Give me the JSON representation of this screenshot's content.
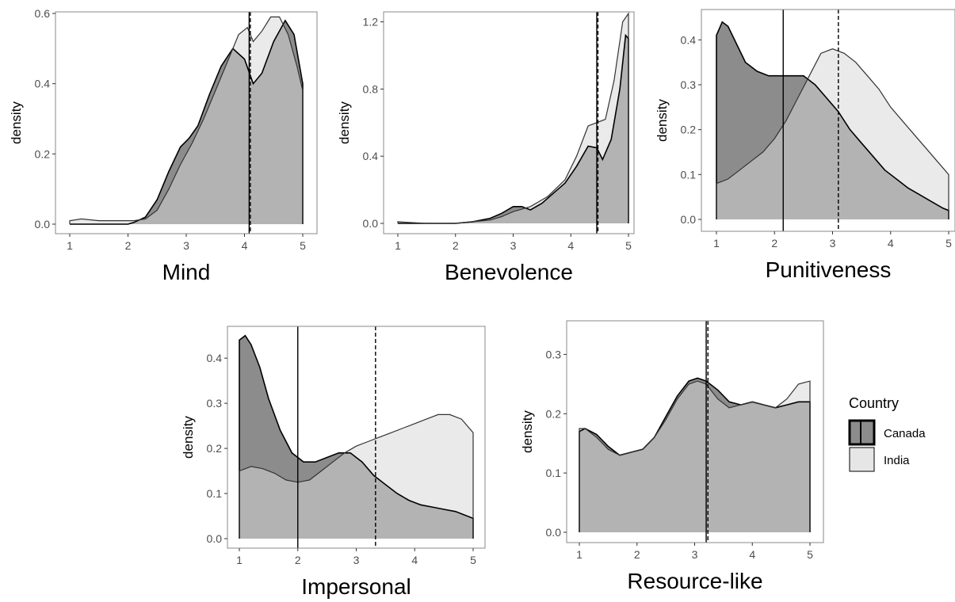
{
  "legend": {
    "title": "Country",
    "entries": [
      {
        "label": "Canada",
        "fill": "#8c8c8c"
      },
      {
        "label": "India",
        "fill": "#e6e6e6"
      }
    ]
  },
  "chart_data": [
    {
      "type": "area",
      "xlabel": "Mind",
      "ylabel": "density",
      "xlim": [
        1,
        5
      ],
      "ylim": [
        0,
        0.6
      ],
      "xticks": [
        1,
        2,
        3,
        4,
        5
      ],
      "yticks": [
        0.0,
        0.2,
        0.4,
        0.6
      ],
      "ytick_labels": [
        "0.0",
        "0.2",
        "0.4",
        "0.6"
      ],
      "series": [
        {
          "name": "Canada",
          "mean": 4.08,
          "mean_line": "solid",
          "x": [
            1.0,
            2.0,
            2.1,
            2.3,
            2.5,
            2.7,
            2.9,
            3.05,
            3.2,
            3.4,
            3.6,
            3.8,
            4.0,
            4.15,
            4.3,
            4.5,
            4.7,
            4.85,
            5.0
          ],
          "y": [
            0.0,
            0.0,
            0.005,
            0.02,
            0.07,
            0.15,
            0.22,
            0.245,
            0.28,
            0.37,
            0.45,
            0.5,
            0.47,
            0.4,
            0.43,
            0.52,
            0.58,
            0.54,
            0.4
          ]
        },
        {
          "name": "India",
          "mean": 4.1,
          "mean_line": "dashed",
          "x": [
            1.0,
            1.2,
            1.5,
            1.8,
            2.1,
            2.3,
            2.5,
            2.7,
            2.9,
            3.1,
            3.3,
            3.5,
            3.7,
            3.9,
            4.05,
            4.15,
            4.3,
            4.45,
            4.6,
            4.75,
            4.9,
            5.0
          ],
          "y": [
            0.01,
            0.015,
            0.01,
            0.01,
            0.01,
            0.015,
            0.04,
            0.1,
            0.17,
            0.23,
            0.3,
            0.38,
            0.46,
            0.54,
            0.56,
            0.52,
            0.55,
            0.59,
            0.59,
            0.54,
            0.45,
            0.38
          ]
        }
      ]
    },
    {
      "type": "area",
      "xlabel": "Benevolence",
      "ylabel": "density",
      "xlim": [
        1,
        5
      ],
      "ylim": [
        0,
        1.25
      ],
      "xticks": [
        1,
        2,
        3,
        4,
        5
      ],
      "yticks": [
        0.0,
        0.4,
        0.8,
        1.2
      ],
      "ytick_labels": [
        "0.0",
        "0.4",
        "0.8",
        "1.2"
      ],
      "series": [
        {
          "name": "Canada",
          "mean": 4.45,
          "mean_line": "solid",
          "x": [
            1.0,
            2.0,
            2.3,
            2.6,
            2.8,
            3.0,
            3.15,
            3.3,
            3.5,
            3.7,
            3.9,
            4.1,
            4.3,
            4.45,
            4.55,
            4.7,
            4.85,
            4.95,
            5.0
          ],
          "y": [
            0.0,
            0.0,
            0.01,
            0.03,
            0.06,
            0.1,
            0.1,
            0.08,
            0.12,
            0.18,
            0.24,
            0.34,
            0.46,
            0.45,
            0.38,
            0.5,
            0.8,
            1.12,
            1.1
          ]
        },
        {
          "name": "India",
          "mean": 4.47,
          "mean_line": "dashed",
          "x": [
            1.0,
            1.2,
            1.5,
            2.0,
            2.3,
            2.6,
            2.8,
            3.0,
            3.3,
            3.6,
            3.9,
            4.1,
            4.3,
            4.45,
            4.6,
            4.75,
            4.9,
            5.0
          ],
          "y": [
            0.01,
            0.005,
            0.0,
            0.0,
            0.01,
            0.02,
            0.04,
            0.07,
            0.1,
            0.16,
            0.26,
            0.4,
            0.58,
            0.6,
            0.62,
            0.85,
            1.2,
            1.25
          ]
        }
      ]
    },
    {
      "type": "area",
      "xlabel": "Punitiveness",
      "ylabel": "density",
      "xlim": [
        1,
        5
      ],
      "ylim": [
        0,
        0.45
      ],
      "xticks": [
        1,
        2,
        3,
        4,
        5
      ],
      "yticks": [
        0.0,
        0.1,
        0.2,
        0.3,
        0.4
      ],
      "ytick_labels": [
        "0.0",
        "0.1",
        "0.2",
        "0.3",
        "0.4"
      ],
      "series": [
        {
          "name": "Canada",
          "mean": 2.15,
          "mean_line": "solid",
          "x": [
            1.0,
            1.1,
            1.2,
            1.35,
            1.5,
            1.7,
            1.9,
            2.1,
            2.3,
            2.5,
            2.7,
            2.9,
            3.1,
            3.3,
            3.5,
            3.7,
            3.9,
            4.1,
            4.3,
            4.5,
            4.7,
            4.9,
            5.0
          ],
          "y": [
            0.41,
            0.44,
            0.43,
            0.39,
            0.35,
            0.33,
            0.32,
            0.32,
            0.32,
            0.32,
            0.3,
            0.27,
            0.24,
            0.2,
            0.17,
            0.14,
            0.11,
            0.09,
            0.07,
            0.055,
            0.04,
            0.025,
            0.02
          ]
        },
        {
          "name": "India",
          "mean": 3.1,
          "mean_line": "dashed",
          "x": [
            1.0,
            1.2,
            1.4,
            1.6,
            1.8,
            2.0,
            2.2,
            2.4,
            2.6,
            2.8,
            3.0,
            3.2,
            3.4,
            3.6,
            3.8,
            4.0,
            4.2,
            4.4,
            4.6,
            4.8,
            5.0
          ],
          "y": [
            0.08,
            0.09,
            0.11,
            0.13,
            0.15,
            0.18,
            0.22,
            0.27,
            0.32,
            0.37,
            0.38,
            0.37,
            0.35,
            0.32,
            0.29,
            0.25,
            0.22,
            0.19,
            0.16,
            0.13,
            0.1
          ]
        }
      ]
    },
    {
      "type": "area",
      "xlabel": "Impersonal",
      "ylabel": "density",
      "xlim": [
        1,
        5
      ],
      "ylim": [
        0,
        0.46
      ],
      "xticks": [
        1,
        2,
        3,
        4,
        5
      ],
      "yticks": [
        0.0,
        0.1,
        0.2,
        0.3,
        0.4
      ],
      "ytick_labels": [
        "0.0",
        "0.1",
        "0.2",
        "0.3",
        "0.4"
      ],
      "series": [
        {
          "name": "Canada",
          "mean": 2.0,
          "mean_line": "solid",
          "x": [
            1.0,
            1.1,
            1.2,
            1.35,
            1.5,
            1.7,
            1.9,
            2.1,
            2.3,
            2.5,
            2.7,
            2.9,
            3.1,
            3.3,
            3.5,
            3.7,
            3.9,
            4.1,
            4.3,
            4.5,
            4.7,
            5.0
          ],
          "y": [
            0.44,
            0.45,
            0.43,
            0.38,
            0.31,
            0.24,
            0.19,
            0.17,
            0.17,
            0.18,
            0.19,
            0.19,
            0.17,
            0.14,
            0.12,
            0.1,
            0.085,
            0.075,
            0.07,
            0.065,
            0.06,
            0.045
          ]
        },
        {
          "name": "India",
          "mean": 3.33,
          "mean_line": "dashed",
          "x": [
            1.0,
            1.2,
            1.4,
            1.6,
            1.8,
            2.0,
            2.2,
            2.4,
            2.6,
            2.8,
            3.0,
            3.2,
            3.4,
            3.6,
            3.8,
            4.0,
            4.2,
            4.4,
            4.6,
            4.8,
            5.0
          ],
          "y": [
            0.15,
            0.16,
            0.155,
            0.145,
            0.13,
            0.125,
            0.13,
            0.15,
            0.17,
            0.19,
            0.205,
            0.215,
            0.225,
            0.235,
            0.245,
            0.255,
            0.265,
            0.275,
            0.275,
            0.265,
            0.235
          ]
        }
      ]
    },
    {
      "type": "area",
      "xlabel": "Resource-like",
      "ylabel": "density",
      "xlim": [
        1,
        5
      ],
      "ylim": [
        0,
        0.35
      ],
      "xticks": [
        1,
        2,
        3,
        4,
        5
      ],
      "yticks": [
        0.0,
        0.1,
        0.2,
        0.3
      ],
      "ytick_labels": [
        "0.0",
        "0.1",
        "0.2",
        "0.3"
      ],
      "series": [
        {
          "name": "Canada",
          "mean": 3.2,
          "mean_line": "solid",
          "x": [
            1.0,
            1.1,
            1.3,
            1.5,
            1.7,
            1.9,
            2.1,
            2.3,
            2.5,
            2.7,
            2.9,
            3.05,
            3.2,
            3.4,
            3.6,
            3.8,
            4.0,
            4.2,
            4.4,
            4.6,
            4.8,
            5.0
          ],
          "y": [
            0.17,
            0.175,
            0.165,
            0.145,
            0.13,
            0.135,
            0.14,
            0.16,
            0.195,
            0.23,
            0.255,
            0.26,
            0.255,
            0.24,
            0.22,
            0.215,
            0.22,
            0.215,
            0.21,
            0.215,
            0.22,
            0.22
          ]
        },
        {
          "name": "India",
          "mean": 3.23,
          "mean_line": "dashed",
          "x": [
            1.0,
            1.1,
            1.3,
            1.5,
            1.7,
            1.9,
            2.1,
            2.3,
            2.5,
            2.7,
            2.9,
            3.05,
            3.2,
            3.4,
            3.6,
            3.8,
            4.0,
            4.2,
            4.4,
            4.6,
            4.8,
            5.0
          ],
          "y": [
            0.175,
            0.175,
            0.16,
            0.14,
            0.13,
            0.135,
            0.14,
            0.16,
            0.19,
            0.225,
            0.25,
            0.255,
            0.25,
            0.225,
            0.21,
            0.215,
            0.22,
            0.215,
            0.21,
            0.225,
            0.25,
            0.255
          ]
        }
      ]
    }
  ]
}
